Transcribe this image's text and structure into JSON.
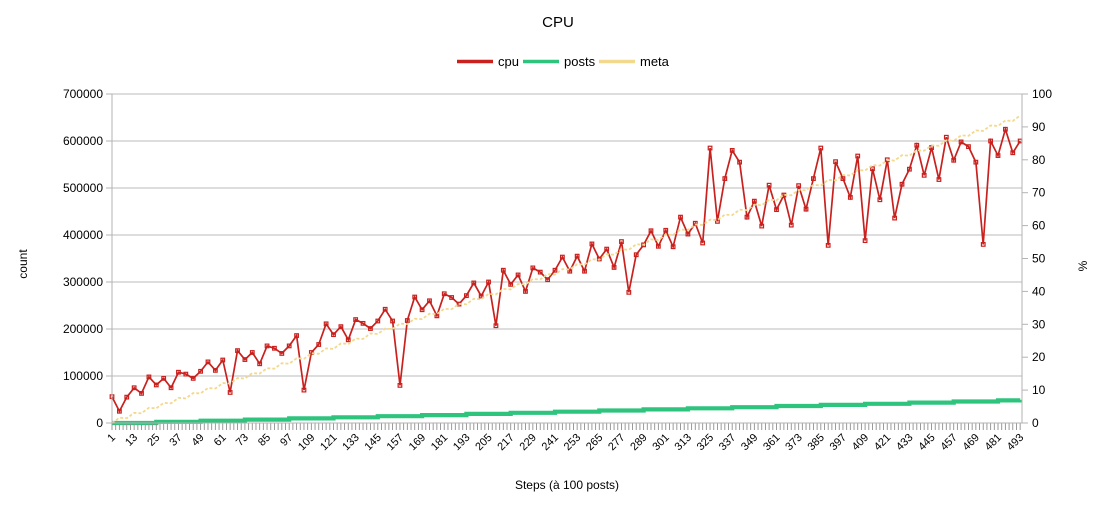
{
  "title": "CPU",
  "legend": {
    "items": [
      {
        "label": "cpu",
        "color": "#c9211e"
      },
      {
        "label": "posts",
        "color": "#2ec47e"
      },
      {
        "label": "meta",
        "color": "#f3d98e"
      }
    ]
  },
  "colors": {
    "background": "#ffffff",
    "grid": "#bbbbbb",
    "axis": "#b3b3b3",
    "minor_tick": "#8f8f8f",
    "text": "#000000",
    "cpu": "#c9211e",
    "posts": "#2ec47e",
    "meta": "#f3d98e"
  },
  "chart_data": {
    "type": "line",
    "title": "CPU",
    "xlabel": "Steps (à 100 posts)",
    "ylabel_left": "count",
    "ylabel_right": "%",
    "legend_position": "top",
    "grid": "horizontal",
    "xlim": [
      1,
      494
    ],
    "ylim_left": [
      0,
      700000
    ],
    "ylim_right": [
      0,
      100
    ],
    "y_ticks_left": [
      0,
      100000,
      200000,
      300000,
      400000,
      500000,
      600000,
      700000
    ],
    "y_ticks_right": [
      0,
      10,
      20,
      30,
      40,
      50,
      60,
      70,
      80,
      90,
      100
    ],
    "x_tick_labels": [
      "1",
      "13",
      "25",
      "37",
      "49",
      "61",
      "73",
      "85",
      "97",
      "109",
      "121",
      "133",
      "145",
      "157",
      "169",
      "181",
      "193",
      "205",
      "217",
      "229",
      "241",
      "253",
      "265",
      "277",
      "289",
      "301",
      "313",
      "325",
      "337",
      "349",
      "361",
      "373",
      "385",
      "397",
      "409",
      "421",
      "433",
      "445",
      "457",
      "469",
      "481",
      "493"
    ],
    "series": [
      {
        "name": "cpu",
        "axis": "left",
        "color": "#c9211e",
        "style": "noisy-line-with-markers",
        "x": [
          1,
          5,
          9,
          13,
          17,
          21,
          25,
          29,
          33,
          37,
          41,
          45,
          49,
          53,
          57,
          61,
          65,
          69,
          73,
          77,
          81,
          85,
          89,
          93,
          97,
          101,
          105,
          109,
          113,
          117,
          121,
          125,
          129,
          133,
          137,
          141,
          145,
          149,
          153,
          157,
          161,
          165,
          169,
          173,
          177,
          181,
          185,
          189,
          193,
          197,
          201,
          205,
          209,
          213,
          217,
          221,
          225,
          229,
          233,
          237,
          241,
          245,
          249,
          253,
          257,
          261,
          265,
          269,
          273,
          277,
          281,
          285,
          289,
          293,
          297,
          301,
          305,
          309,
          313,
          317,
          321,
          325,
          329,
          333,
          337,
          341,
          345,
          349,
          353,
          357,
          361,
          365,
          369,
          373,
          377,
          381,
          385,
          389,
          393,
          397,
          401,
          405,
          409,
          413,
          417,
          421,
          425,
          429,
          433,
          437,
          441,
          445,
          449,
          453,
          457,
          461,
          465,
          469,
          473,
          477,
          481,
          485,
          489,
          493
        ],
        "values": [
          56000,
          25000,
          55000,
          75000,
          63000,
          98000,
          81000,
          95000,
          75000,
          108000,
          104000,
          95000,
          110000,
          130000,
          112000,
          134000,
          65000,
          154000,
          135000,
          150000,
          126000,
          164000,
          159000,
          148000,
          164000,
          186000,
          70000,
          150000,
          167000,
          211000,
          188000,
          205000,
          177000,
          220000,
          212000,
          201000,
          217000,
          242000,
          217000,
          80000,
          218000,
          268000,
          241000,
          260000,
          228000,
          275000,
          267000,
          253000,
          271000,
          298000,
          270000,
          300000,
          207000,
          325000,
          295000,
          315000,
          280000,
          330000,
          321000,
          305000,
          325000,
          353000,
          323000,
          355000,
          323000,
          381000,
          349000,
          370000,
          331000,
          386000,
          278000,
          358000,
          379000,
          409000,
          376000,
          410000,
          375000,
          438000,
          402000,
          425000,
          383000,
          585000,
          429000,
          520000,
          580000,
          555000,
          438000,
          472000,
          419000,
          506000,
          454000,
          485000,
          421000,
          505000,
          455000,
          520000,
          585000,
          378000,
          556000,
          520000,
          480000,
          568000,
          388000,
          541000,
          475000,
          560000,
          436000,
          508000,
          540000,
          591000,
          527000,
          586000,
          518000,
          608000,
          559000,
          598000,
          588000,
          555000,
          380000,
          600000,
          569000,
          625000,
          575000,
          600000
        ]
      },
      {
        "name": "posts",
        "axis": "left",
        "color": "#2ec47e",
        "style": "thick-stepped",
        "x": [
          1,
          25,
          49,
          73,
          97,
          121,
          145,
          169,
          193,
          217,
          241,
          265,
          289,
          313,
          337,
          361,
          385,
          409,
          433,
          457,
          481,
          493
        ],
        "values": [
          100,
          2500,
          4900,
          7300,
          9700,
          12100,
          14500,
          16900,
          19300,
          21700,
          24100,
          26500,
          28900,
          31300,
          33700,
          36100,
          38500,
          40900,
          43300,
          45700,
          48100,
          49300
        ]
      },
      {
        "name": "meta",
        "axis": "right",
        "color": "#f3d98e",
        "style": "dotted-zigzag",
        "x": [
          1,
          493
        ],
        "values": [
          0.4,
          93
        ]
      }
    ]
  }
}
